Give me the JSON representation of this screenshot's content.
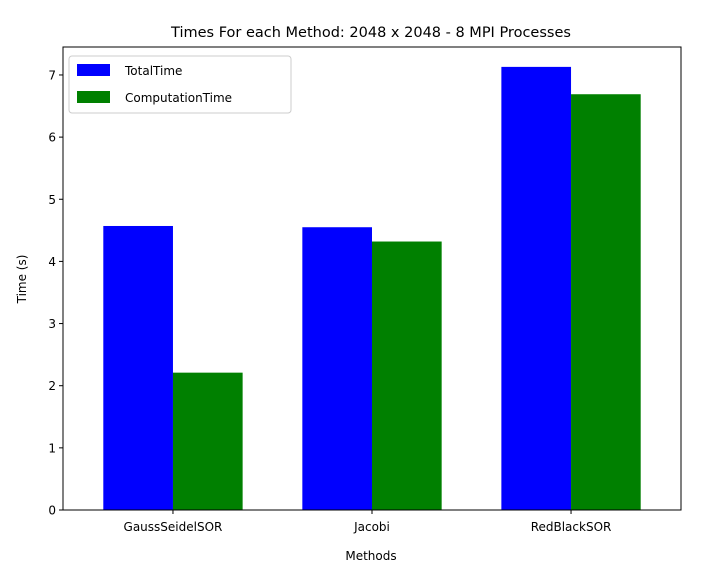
{
  "chart_data": {
    "type": "bar",
    "title": "Times For each Method: 2048 x 2048 - 8 MPI Processes",
    "xlabel": "Methods",
    "ylabel": "Time (s)",
    "ylim": [
      0,
      7.45
    ],
    "yticks": [
      0,
      1,
      2,
      3,
      4,
      5,
      6,
      7
    ],
    "categories": [
      "GaussSeidelSOR",
      "Jacobi",
      "RedBlackSOR"
    ],
    "series": [
      {
        "name": "TotalTime",
        "color": "#0000ff",
        "values": [
          4.57,
          4.55,
          7.13
        ]
      },
      {
        "name": "ComputationTime",
        "color": "#008000",
        "values": [
          2.21,
          4.32,
          6.69
        ]
      }
    ],
    "grid": false,
    "legend_position": "top-left"
  }
}
